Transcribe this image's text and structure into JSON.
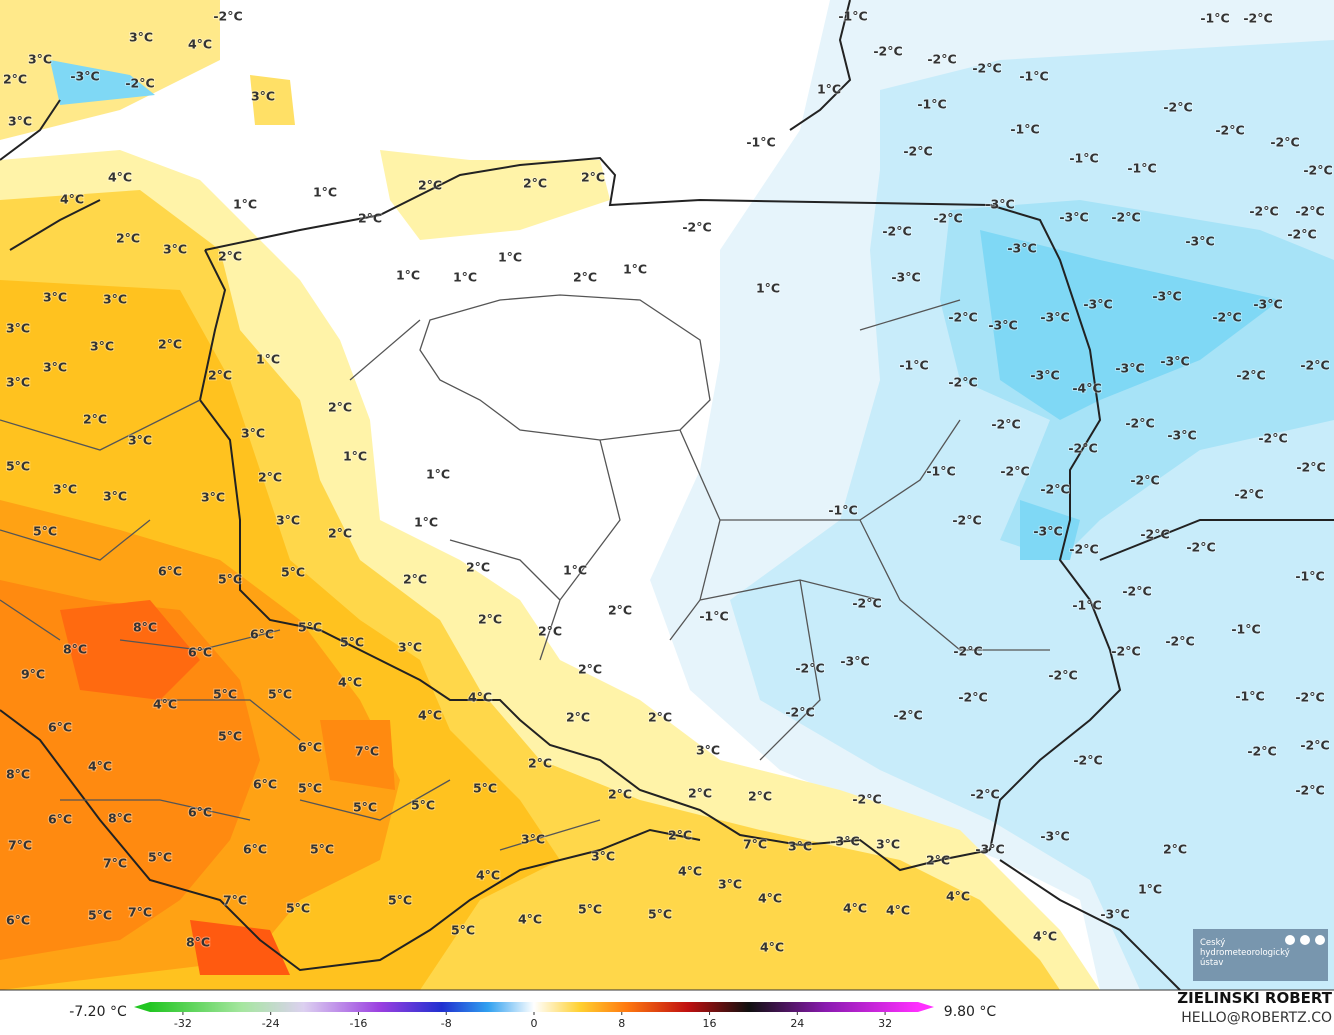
{
  "map": {
    "labels": [
      "-2°C",
      "3°C",
      "4°C",
      "3°C",
      "-3°C",
      "-2°C",
      "2°C",
      "3°C",
      "3°C",
      "4°C",
      "4°C",
      "1°C",
      "1°C",
      "2°C",
      "2°C",
      "2°C",
      "2°C",
      "2°C",
      "3°C",
      "2°C",
      "1°C",
      "1°C",
      "1°C",
      "2°C",
      "1°C",
      "1°C",
      "3°C",
      "3°C",
      "3°C",
      "3°C",
      "2°C",
      "1°C",
      "3°C",
      "2°C",
      "3°C",
      "2°C",
      "2°C",
      "3°C",
      "3°C",
      "1°C",
      "1°C",
      "5°C",
      "2°C",
      "3°C",
      "3°C",
      "3°C",
      "3°C",
      "1°C",
      "5°C",
      "2°C",
      "6°C",
      "5°C",
      "5°C",
      "2°C",
      "2°C",
      "1°C",
      "8°C",
      "2°C",
      "2°C",
      "2°C",
      "8°C",
      "6°C",
      "5°C",
      "5°C",
      "3°C",
      "6°C",
      "9°C",
      "4°C",
      "4°C",
      "2°C",
      "5°C",
      "5°C",
      "4°C",
      "4°C",
      "2°C",
      "2°C",
      "6°C",
      "5°C",
      "6°C",
      "7°C",
      "3°C",
      "4°C",
      "2°C",
      "8°C",
      "6°C",
      "5°C",
      "5°C",
      "2°C",
      "2°C",
      "2°C",
      "5°C",
      "5°C",
      "6°C",
      "8°C",
      "6°C",
      "2°C",
      "3°C",
      "7°C",
      "3°C",
      "3°C",
      "2°C",
      "7°C",
      "6°C",
      "5°C",
      "3°C",
      "5°C",
      "7°C",
      "4°C",
      "4°C",
      "3°C",
      "7°C",
      "5°C",
      "4°C",
      "7°C",
      "5°C",
      "4°C",
      "5°C",
      "5°C",
      "4°C",
      "4°C",
      "4°C",
      "5°C",
      "6°C",
      "5°C",
      "8°C",
      "4°C",
      "4°C",
      "1°C",
      "-3°C",
      "-1°C",
      "-1°C",
      "-2°C",
      "-2°C",
      "-2°C",
      "-2°C",
      "-1°C",
      "1°C",
      "-1°C",
      "-2°C",
      "-1°C",
      "-2°C",
      "-1°C",
      "-2°C",
      "-2°C",
      "-1°C",
      "-1°C",
      "-2°C",
      "-3°C",
      "-2°C",
      "-3°C",
      "-2°C",
      "-2°C",
      "-2°C",
      "-2°C",
      "-2°C",
      "-3°C",
      "-3°C",
      "-2°C",
      "-3°C",
      "-3°C",
      "-3°C",
      "-3°C",
      "-2°C",
      "-3°C",
      "-2°C",
      "-3°C",
      "-2°C",
      "-1°C",
      "-2°C",
      "-3°C",
      "-3°C",
      "-3°C",
      "-4°C",
      "-2°C",
      "-2°C",
      "-2°C",
      "-3°C",
      "-2°C",
      "-2°C",
      "-1°C",
      "-2°C",
      "-2°C",
      "-2°C",
      "-2°C",
      "-2°C",
      "-1°C",
      "-2°C",
      "-3°C",
      "-2°C",
      "-2°C",
      "-2°C",
      "-1°C",
      "-2°C",
      "-1°C",
      "-2°C",
      "-1°C",
      "-1°C",
      "-2°C",
      "-2°C",
      "-2°C",
      "-2°C",
      "-3°C",
      "-2°C",
      "-1°C",
      "-2°C",
      "-2°C",
      "-2°C",
      "-2°C",
      "-2°C",
      "-2°C",
      "-2°C",
      "-2°C",
      "-2°C",
      "-2°C",
      "-3°C",
      "-3°C",
      "-3°C",
      "2°C"
    ],
    "colorbar": {
      "min_label": "-7.20 °C",
      "max_label": "9.80 °C",
      "range": [
        -35,
        35
      ],
      "ticks": [
        -32,
        -24,
        -16,
        -8,
        0,
        8,
        16,
        24,
        32
      ]
    },
    "author": "ZIELINSKI ROBERT",
    "contact": "HELLO@ROBERTZ.CO",
    "logo": "Český hydrometeorologický ústav"
  }
}
